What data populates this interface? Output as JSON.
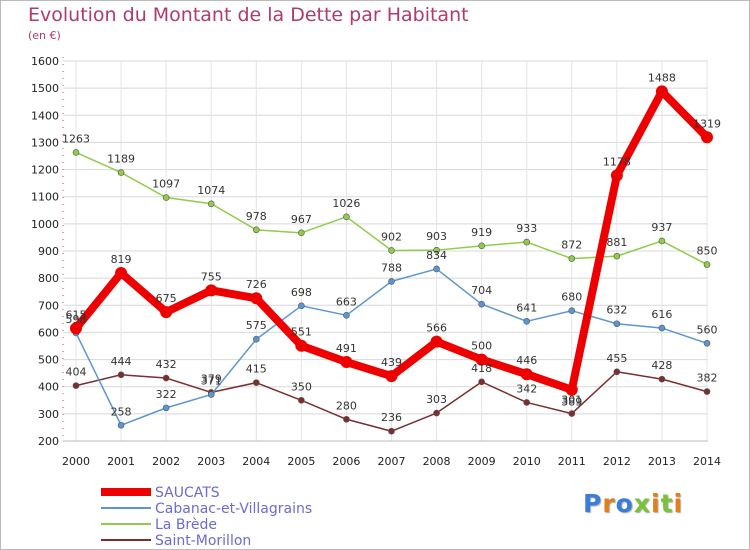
{
  "chart_data": {
    "type": "line",
    "title": "Evolution du Montant de la Dette par Habitant",
    "subtitle": "(en €)",
    "x": [
      "2000",
      "2001",
      "2002",
      "2003",
      "2004",
      "2005",
      "2006",
      "2007",
      "2008",
      "2009",
      "2010",
      "2011",
      "2012",
      "2013",
      "2014"
    ],
    "ylim": [
      200,
      1600
    ],
    "yticks": [
      200,
      300,
      400,
      500,
      600,
      700,
      800,
      900,
      1000,
      1100,
      1200,
      1300,
      1400,
      1500,
      1600
    ],
    "grid": true,
    "legend_position": "bottom-left",
    "series": [
      {
        "name": "SAUCATS",
        "color": "#ee0000",
        "label_color": "#6b6bd6",
        "values": [
          615,
          819,
          675,
          755,
          726,
          551,
          491,
          439,
          566,
          500,
          446,
          389,
          1178,
          1488,
          1319
        ],
        "labels": [
          "615",
          "819",
          "675",
          "755",
          "726",
          "551",
          "491",
          "439",
          "566",
          "500",
          "446",
          "389",
          "1178",
          "1488",
          "1319"
        ]
      },
      {
        "name": "Cabanac-et-Villagrains",
        "color": "#5b96d3",
        "label_color": "#6b6bd6",
        "values": [
          598,
          258,
          322,
          371,
          575,
          698,
          663,
          788,
          834,
          704,
          641,
          680,
          632,
          616,
          560
        ],
        "labels": [
          "598",
          "258",
          "322",
          "371",
          "575",
          "698",
          "663",
          "788",
          "834",
          "704",
          "641",
          "680",
          "632",
          "616",
          "560"
        ]
      },
      {
        "name": "La Brède",
        "color": "#8fcc4a",
        "label_color": "#6b6bd6",
        "values": [
          1263,
          1189,
          1097,
          1074,
          978,
          967,
          1026,
          902,
          903,
          919,
          933,
          872,
          881,
          937,
          850
        ],
        "labels": [
          "1263",
          "1189",
          "1097",
          "1074",
          "978",
          "967",
          "1026",
          "902",
          "903",
          "919",
          "933",
          "872",
          "881",
          "937",
          "850"
        ]
      },
      {
        "name": "Saint-Morillon",
        "color": "#7a2e2e",
        "label_color": "#6b6bd6",
        "values": [
          404,
          444,
          432,
          379,
          415,
          350,
          280,
          236,
          303,
          418,
          342,
          301,
          455,
          428,
          382
        ],
        "labels": [
          "404",
          "444",
          "432",
          "379",
          "415",
          "350",
          "280",
          "236",
          "303",
          "418",
          "342",
          "301",
          "455",
          "428",
          "382"
        ]
      }
    ]
  },
  "logo": {
    "text": "Proxiti",
    "colors": [
      "#3a7fd5",
      "#e0801a",
      "#3a7fd5",
      "#7ac23a",
      "#e0801a",
      "#7ac23a",
      "#e0801a"
    ]
  }
}
